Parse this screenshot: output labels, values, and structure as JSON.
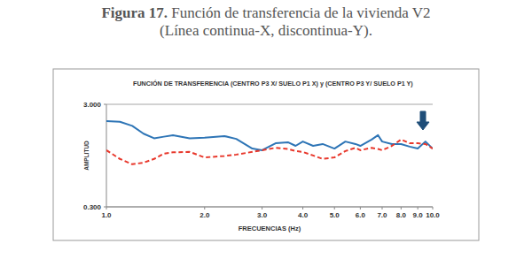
{
  "caption": {
    "label": "Figura 17.",
    "line1": "Función de transferencia de la vivienda V2",
    "line2": "(Línea continua-X, discontinua-Y)."
  },
  "chart_data": {
    "type": "line",
    "title": "FUNCIÓN DE TRANSFERENCIA  (CENTRO P3 X/ SUELO  P1 X)  y   (CENTRO P3  Y/ SUELO  P1 Y)",
    "x_label": "FRECUENCIAS (Hz)",
    "y_label": "AMPLITUD",
    "log": true,
    "grid": true,
    "xlim": [
      1,
      10
    ],
    "ylim": [
      0.3,
      3
    ],
    "xticks": [
      {
        "value": 1,
        "label": "1.0"
      },
      {
        "value": 2,
        "label": "2.0"
      },
      {
        "value": 3,
        "label": "3.0"
      },
      {
        "value": 4,
        "label": "4.0"
      },
      {
        "value": 5,
        "label": "5.0"
      },
      {
        "value": 6,
        "label": "6.0"
      },
      {
        "value": 7,
        "label": "7.0"
      },
      {
        "value": 8,
        "label": "8.0"
      },
      {
        "value": 9,
        "label": "9.0"
      },
      {
        "value": 10,
        "label": "10.0"
      }
    ],
    "yticks": [
      {
        "value": 0.3,
        "label": "0.300"
      },
      {
        "value": 3,
        "label": "3.000"
      }
    ],
    "x": [
      1,
      1.1,
      1.2,
      1.3,
      1.4,
      1.5,
      1.6,
      1.8,
      2,
      2.3,
      2.5,
      2.8,
      3,
      3.3,
      3.6,
      3.8,
      4,
      4.3,
      4.6,
      5,
      5.4,
      5.8,
      6,
      6.5,
      6.8,
      7,
      7.5,
      8,
      8.5,
      9,
      9.5,
      10
    ],
    "series": [
      {
        "color": "#2e75b6",
        "line_style": "solid",
        "values": [
          2.06,
          2.03,
          1.85,
          1.55,
          1.4,
          1.45,
          1.5,
          1.4,
          1.42,
          1.47,
          1.38,
          1.11,
          1.07,
          1.25,
          1.28,
          1.18,
          1.3,
          1.18,
          1.23,
          1.11,
          1.3,
          1.23,
          1.18,
          1.36,
          1.5,
          1.3,
          1.23,
          1.23,
          1.16,
          1.11,
          1.3,
          1.11
        ]
      },
      {
        "color": "#e8382c",
        "line_style": "dashed",
        "values": [
          1.07,
          0.88,
          0.78,
          0.81,
          0.88,
          0.99,
          1.02,
          1.03,
          0.91,
          0.94,
          0.97,
          1.03,
          1.07,
          1.13,
          1.1,
          1.05,
          1.03,
          0.95,
          0.88,
          0.91,
          1.05,
          1.13,
          1.07,
          1.13,
          1.1,
          1.07,
          1.18,
          1.36,
          1.25,
          1.25,
          1.23,
          1.11
        ]
      }
    ]
  }
}
